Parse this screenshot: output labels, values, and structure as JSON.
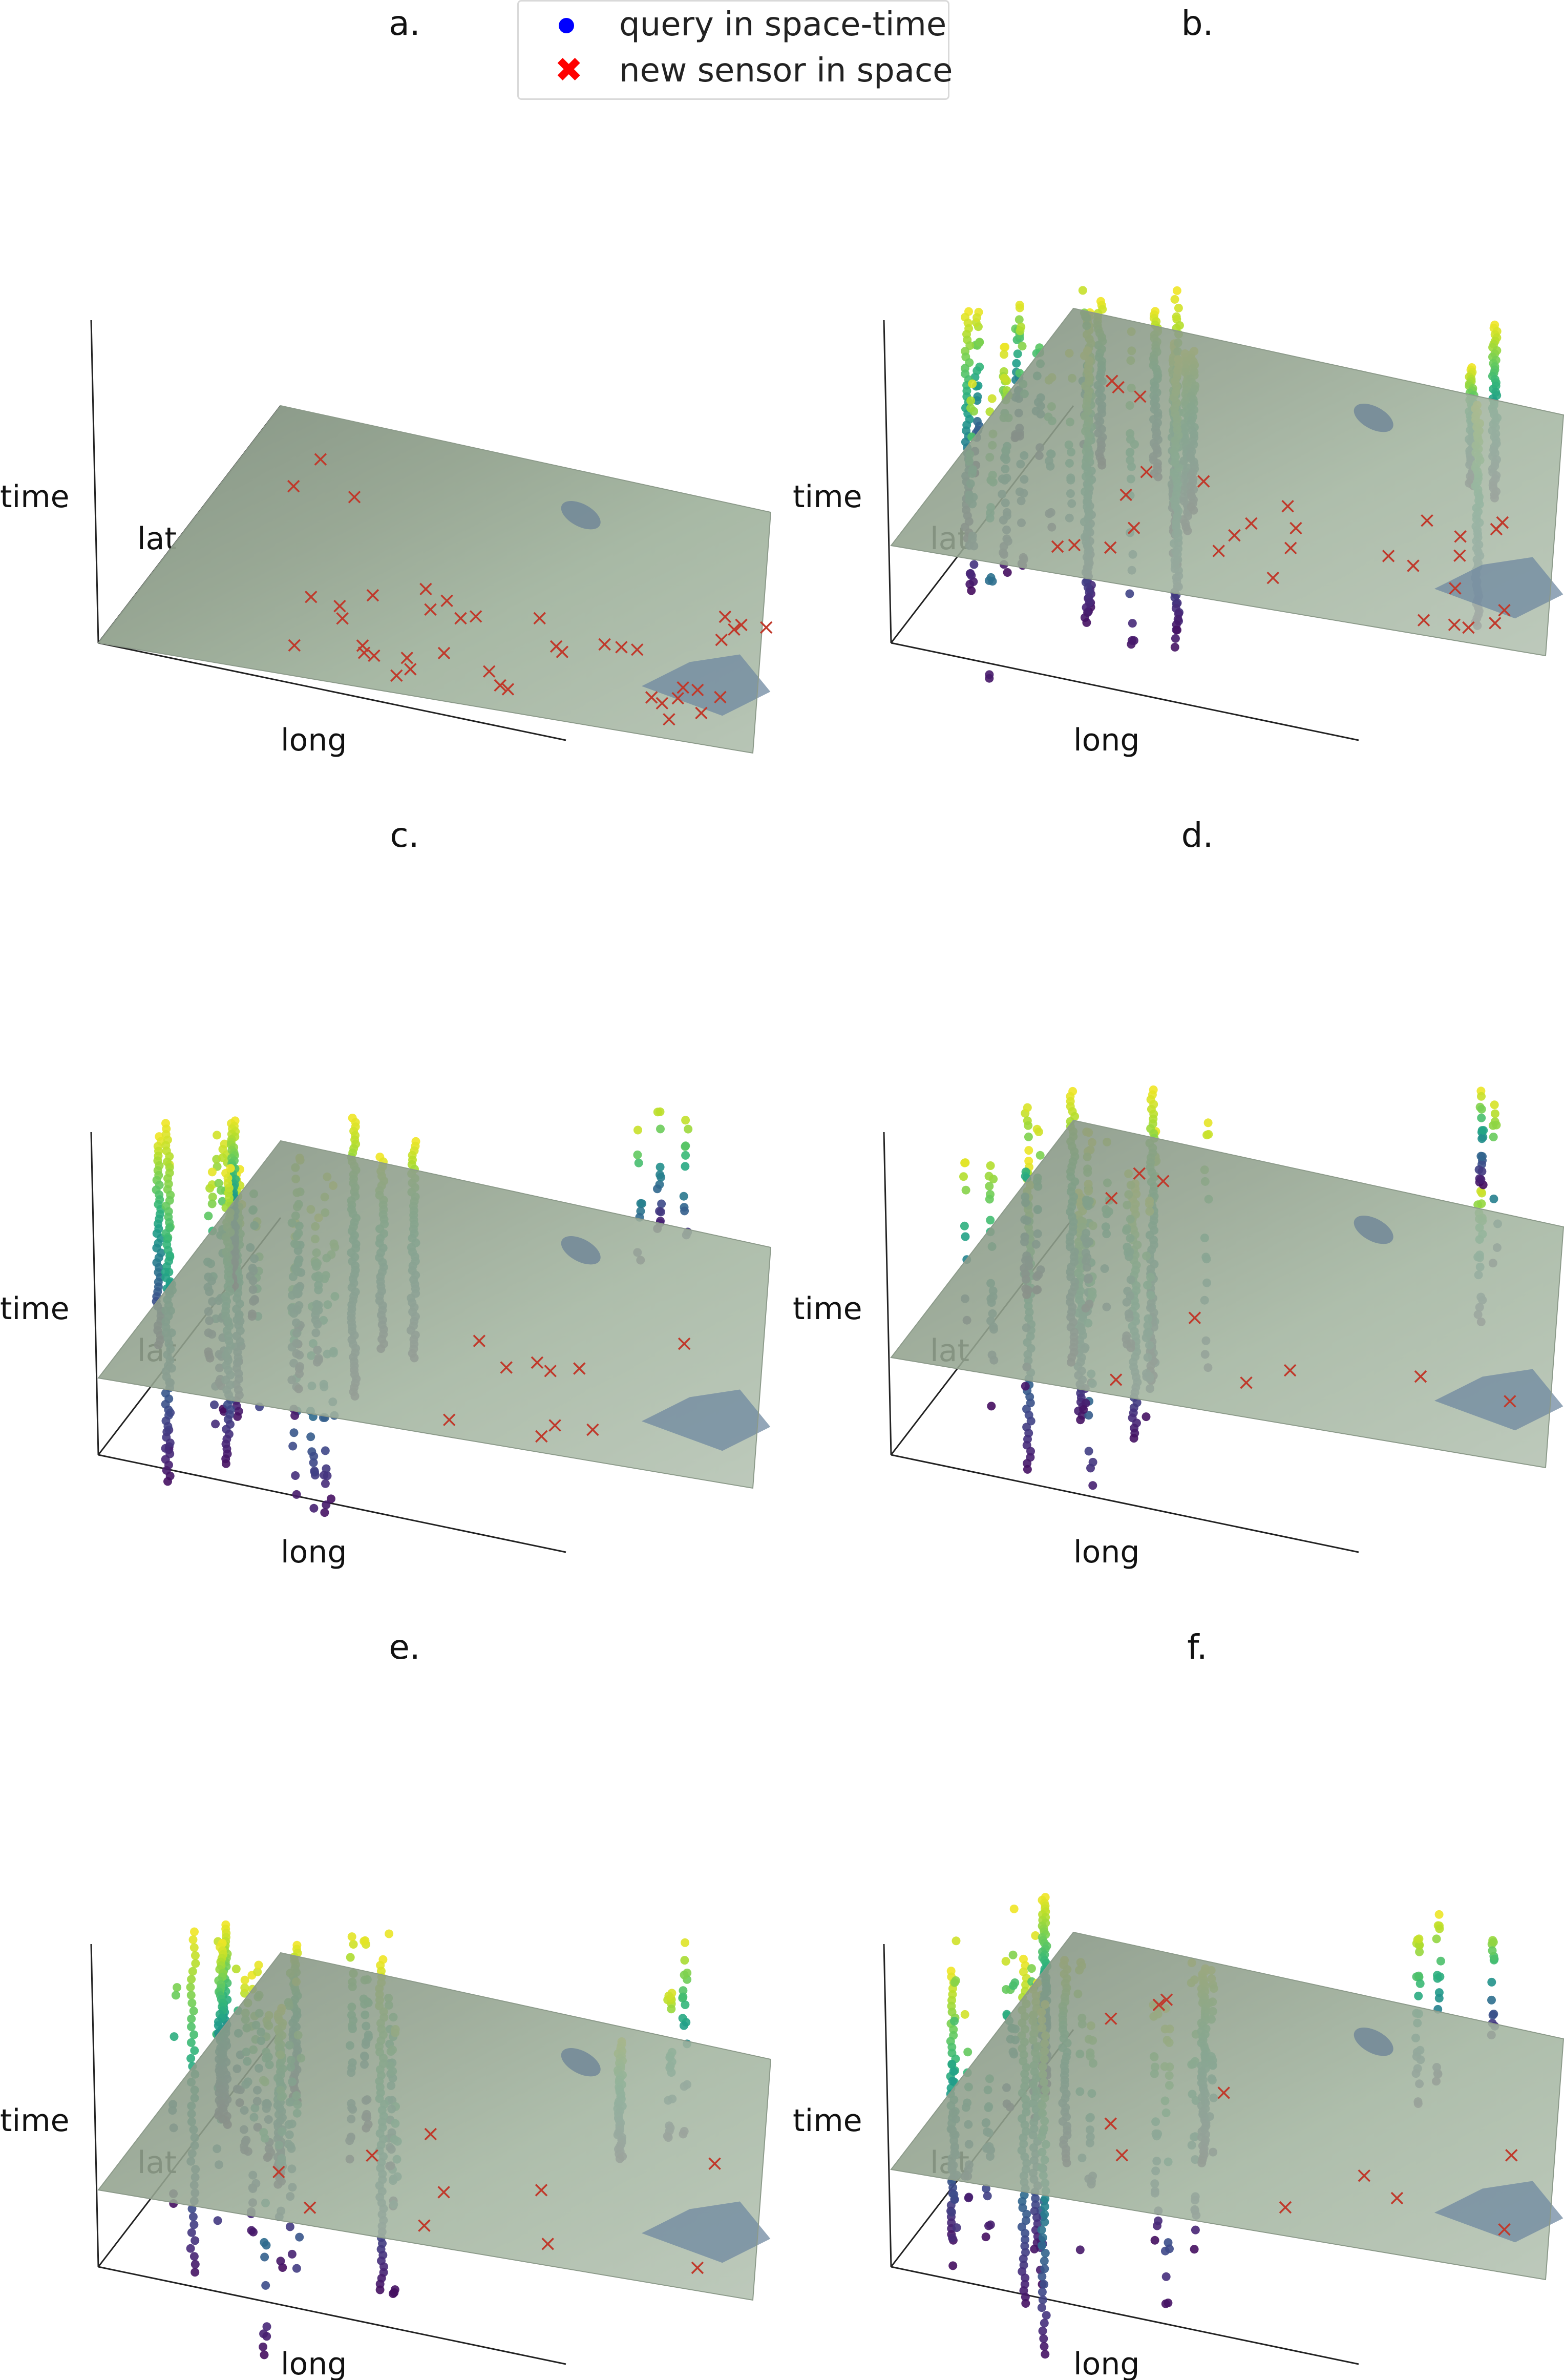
{
  "legend": {
    "query_label": "query in space-time",
    "sensor_label": "new sensor in space",
    "query_color": "#0000ff",
    "sensor_color": "#ff0000"
  },
  "chart_data": [
    {
      "type": "scatter",
      "panel_label": "a.",
      "xlabel": "long",
      "ylabel": "lat",
      "zlabel": "time",
      "query_series": "none",
      "sensor_series": "present (space plane)"
    },
    {
      "type": "scatter",
      "panel_label": "b.",
      "xlabel": "long",
      "ylabel": "lat",
      "zlabel": "time",
      "query_series": "present (viridis coloured columns)",
      "sensor_series": "present (space plane)"
    },
    {
      "type": "scatter",
      "panel_label": "c.",
      "xlabel": "long",
      "ylabel": "lat",
      "zlabel": "time",
      "query_series": "present (viridis coloured columns)",
      "sensor_series": "present (space plane)"
    },
    {
      "type": "scatter",
      "panel_label": "d.",
      "xlabel": "long",
      "ylabel": "lat",
      "zlabel": "time",
      "query_series": "present (viridis coloured columns)",
      "sensor_series": "present (space plane)"
    },
    {
      "type": "scatter",
      "panel_label": "e.",
      "xlabel": "long",
      "ylabel": "lat",
      "zlabel": "time",
      "query_series": "present (viridis coloured columns)",
      "sensor_series": "present (space plane)"
    },
    {
      "type": "scatter",
      "panel_label": "f.",
      "xlabel": "long",
      "ylabel": "lat",
      "zlabel": "time",
      "query_series": "present (viridis coloured columns)",
      "sensor_series": "present (space plane)"
    }
  ]
}
